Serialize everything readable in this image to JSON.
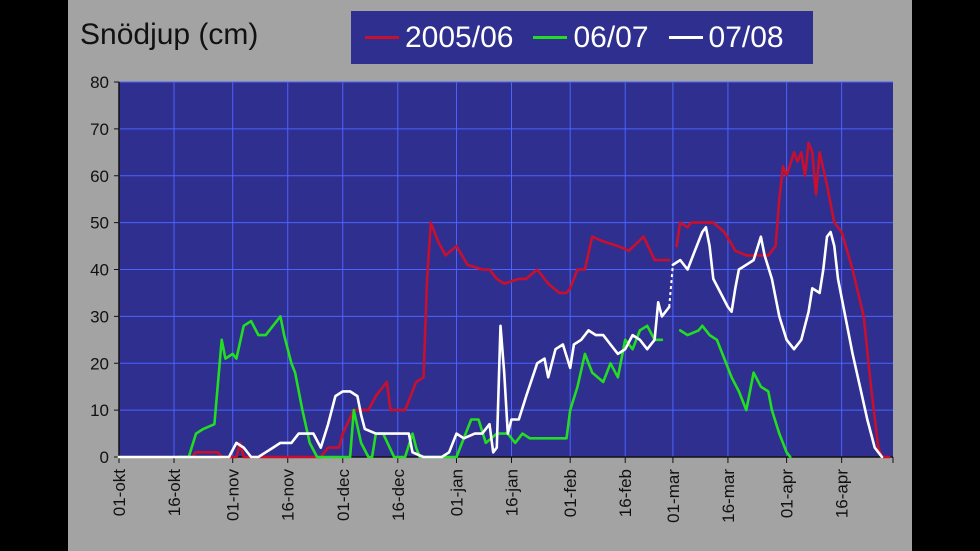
{
  "colors": {
    "page_background": "#000000",
    "panel_background": "#a3a3a3",
    "plot_background": "#2f2f8f",
    "gridline": "#4a64ff",
    "axis_text": "#111111"
  },
  "chart_data": {
    "type": "line",
    "title": "Snödjup (cm)",
    "xlabel": "",
    "ylabel": "",
    "ylim": [
      0,
      80
    ],
    "yticks": [
      "0",
      "10",
      "20",
      "30",
      "40",
      "50",
      "60",
      "70",
      "80"
    ],
    "xlim": [
      "2000-10-01",
      "2001-04-30"
    ],
    "xticks": [
      {
        "date": "2000-10-01",
        "label": "01-okt"
      },
      {
        "date": "2000-10-16",
        "label": "16-okt"
      },
      {
        "date": "2000-11-01",
        "label": "01-nov"
      },
      {
        "date": "2000-11-16",
        "label": "16-nov"
      },
      {
        "date": "2000-12-01",
        "label": "01-dec"
      },
      {
        "date": "2000-12-16",
        "label": "16-dec"
      },
      {
        "date": "2001-01-01",
        "label": "01-jan"
      },
      {
        "date": "2001-01-16",
        "label": "16-jan"
      },
      {
        "date": "2001-02-01",
        "label": "01-feb"
      },
      {
        "date": "2001-02-16",
        "label": "16-feb"
      },
      {
        "date": "2001-03-01",
        "label": "01-mar"
      },
      {
        "date": "2001-03-16",
        "label": "16-mar"
      },
      {
        "date": "2001-04-01",
        "label": "01-apr"
      },
      {
        "date": "2001-04-16",
        "label": "16-apr"
      }
    ],
    "grid": true,
    "legend_position": "top",
    "series": [
      {
        "name": "2005/06",
        "color": "#c8102e",
        "points": [
          [
            "2000-10-21",
            0
          ],
          [
            "2000-10-22",
            1
          ],
          [
            "2000-10-28",
            1
          ],
          [
            "2000-10-29",
            0
          ],
          [
            "2000-11-02",
            0
          ],
          [
            "2000-11-03",
            3
          ],
          [
            "2000-11-04",
            0
          ],
          [
            "2000-11-10",
            0
          ],
          [
            "2000-11-20",
            0
          ],
          [
            "2000-11-25",
            0
          ],
          [
            "2000-11-27",
            2
          ],
          [
            "2000-11-30",
            2
          ],
          [
            "2000-12-01",
            5
          ],
          [
            "2000-12-04",
            10
          ],
          [
            "2000-12-08",
            10
          ],
          [
            "2000-12-10",
            13
          ],
          [
            "2000-12-13",
            16
          ],
          [
            "2000-12-14",
            10
          ],
          [
            "2000-12-18",
            10
          ],
          [
            "2000-12-19",
            12
          ],
          [
            "2000-12-21",
            16
          ],
          [
            "2000-12-23",
            17
          ],
          [
            "2000-12-24",
            38
          ],
          [
            "2000-12-25",
            50
          ],
          [
            "2000-12-27",
            46
          ],
          [
            "2000-12-29",
            43
          ],
          [
            "2001-01-01",
            45
          ],
          [
            "2001-01-04",
            41
          ],
          [
            "2001-01-08",
            40
          ],
          [
            "2001-01-10",
            40
          ],
          [
            "2001-01-12",
            38
          ],
          [
            "2001-01-14",
            37
          ],
          [
            "2001-01-18",
            38
          ],
          [
            "2001-01-20",
            38
          ],
          [
            "2001-01-23",
            40
          ],
          [
            "2001-01-26",
            37
          ],
          [
            "2001-01-29",
            35
          ],
          [
            "2001-01-31",
            35
          ],
          [
            "2001-02-01",
            36
          ],
          [
            "2001-02-03",
            40
          ],
          [
            "2001-02-05",
            40
          ],
          [
            "2001-02-07",
            47
          ],
          [
            "2001-02-10",
            46
          ],
          [
            "2001-02-14",
            45
          ],
          [
            "2001-02-17",
            44
          ],
          [
            "2001-02-21",
            47
          ],
          [
            "2001-02-24",
            42
          ],
          [
            "2001-02-28",
            42
          ]
        ]
      },
      {
        "name": "2005/06",
        "color": "#c8102e",
        "points": [
          [
            "2001-03-02",
            45
          ],
          [
            "2001-03-03",
            50
          ],
          [
            "2001-03-05",
            49
          ],
          [
            "2001-03-06",
            50
          ],
          [
            "2001-03-09",
            50
          ],
          [
            "2001-03-12",
            50
          ],
          [
            "2001-03-15",
            48
          ],
          [
            "2001-03-18",
            44
          ],
          [
            "2001-03-21",
            43
          ],
          [
            "2001-03-24",
            43
          ],
          [
            "2001-03-27",
            43
          ],
          [
            "2001-03-29",
            45
          ],
          [
            "2001-03-30",
            55
          ],
          [
            "2001-03-31",
            62
          ],
          [
            "2001-04-01",
            60
          ],
          [
            "2001-04-03",
            65
          ],
          [
            "2001-04-04",
            63
          ],
          [
            "2001-04-05",
            65
          ],
          [
            "2001-04-06",
            60
          ],
          [
            "2001-04-07",
            67
          ],
          [
            "2001-04-08",
            65
          ],
          [
            "2001-04-09",
            56
          ],
          [
            "2001-04-10",
            65
          ],
          [
            "2001-04-12",
            58
          ],
          [
            "2001-04-14",
            50
          ],
          [
            "2001-04-16",
            48
          ],
          [
            "2001-04-19",
            40
          ],
          [
            "2001-04-22",
            30
          ],
          [
            "2001-04-24",
            15
          ],
          [
            "2001-04-26",
            2
          ],
          [
            "2001-04-27",
            0
          ],
          [
            "2001-04-29",
            0
          ]
        ]
      },
      {
        "name": "06/07",
        "color": "#22dd22",
        "points": [
          [
            "2000-10-17",
            0
          ],
          [
            "2000-10-20",
            0
          ],
          [
            "2000-10-22",
            5
          ],
          [
            "2000-10-24",
            6
          ],
          [
            "2000-10-27",
            7
          ],
          [
            "2000-10-29",
            25
          ],
          [
            "2000-10-30",
            21
          ],
          [
            "2000-11-01",
            22
          ],
          [
            "2000-11-02",
            21
          ],
          [
            "2000-11-04",
            28
          ],
          [
            "2000-11-06",
            29
          ],
          [
            "2000-11-08",
            26
          ],
          [
            "2000-11-10",
            26
          ],
          [
            "2000-11-14",
            30
          ],
          [
            "2000-11-15",
            26
          ],
          [
            "2000-11-17",
            20
          ],
          [
            "2000-11-18",
            18
          ],
          [
            "2000-11-20",
            10
          ],
          [
            "2000-11-22",
            3
          ],
          [
            "2000-11-24",
            0
          ],
          [
            "2000-12-03",
            0
          ],
          [
            "2000-12-04",
            10
          ],
          [
            "2000-12-06",
            3
          ],
          [
            "2000-12-08",
            0
          ],
          [
            "2000-12-09",
            0
          ],
          [
            "2000-12-10",
            5
          ],
          [
            "2000-12-12",
            5
          ],
          [
            "2000-12-15",
            0
          ],
          [
            "2000-12-18",
            0
          ],
          [
            "2000-12-20",
            5
          ],
          [
            "2000-12-21",
            2
          ],
          [
            "2000-12-22",
            0
          ],
          [
            "2000-12-28",
            0
          ],
          [
            "2001-01-01",
            0
          ],
          [
            "2001-01-03",
            4
          ],
          [
            "2001-01-05",
            8
          ],
          [
            "2001-01-07",
            8
          ],
          [
            "2001-01-09",
            3
          ],
          [
            "2001-01-12",
            5
          ],
          [
            "2001-01-15",
            5
          ],
          [
            "2001-01-17",
            3
          ],
          [
            "2001-01-19",
            5
          ],
          [
            "2001-01-21",
            4
          ],
          [
            "2001-01-24",
            4
          ],
          [
            "2001-01-28",
            4
          ],
          [
            "2001-01-31",
            4
          ],
          [
            "2001-02-01",
            10
          ],
          [
            "2001-02-03",
            15
          ],
          [
            "2001-02-05",
            22
          ],
          [
            "2001-02-07",
            18
          ],
          [
            "2001-02-10",
            16
          ],
          [
            "2001-02-12",
            20
          ],
          [
            "2001-02-14",
            17
          ],
          [
            "2001-02-16",
            25
          ],
          [
            "2001-02-18",
            23
          ],
          [
            "2001-02-20",
            27
          ],
          [
            "2001-02-22",
            28
          ],
          [
            "2001-02-24",
            25
          ],
          [
            "2001-02-26",
            25
          ]
        ]
      },
      {
        "name": "06/07",
        "color": "#22dd22",
        "points": [
          [
            "2001-03-03",
            27
          ],
          [
            "2001-03-05",
            26
          ],
          [
            "2001-03-08",
            27
          ],
          [
            "2001-03-09",
            28
          ],
          [
            "2001-03-11",
            26
          ],
          [
            "2001-03-13",
            25
          ],
          [
            "2001-03-15",
            21
          ],
          [
            "2001-03-17",
            17
          ],
          [
            "2001-03-19",
            14
          ],
          [
            "2001-03-21",
            10
          ],
          [
            "2001-03-23",
            18
          ],
          [
            "2001-03-25",
            15
          ],
          [
            "2001-03-27",
            14
          ],
          [
            "2001-03-28",
            10
          ],
          [
            "2001-03-30",
            5
          ],
          [
            "2001-04-01",
            1
          ],
          [
            "2001-04-02",
            0
          ]
        ]
      },
      {
        "name": "07/08",
        "color": "#ffffff",
        "points": [
          [
            "2000-10-01",
            0
          ],
          [
            "2000-10-31",
            0
          ],
          [
            "2000-11-02",
            3
          ],
          [
            "2000-11-04",
            2
          ],
          [
            "2000-11-06",
            0
          ],
          [
            "2000-11-08",
            0
          ],
          [
            "2000-11-10",
            1
          ],
          [
            "2000-11-12",
            2
          ],
          [
            "2000-11-14",
            3
          ],
          [
            "2000-11-17",
            3
          ],
          [
            "2000-11-19",
            5
          ],
          [
            "2000-11-21",
            5
          ],
          [
            "2000-11-23",
            5
          ],
          [
            "2000-11-25",
            2
          ],
          [
            "2000-11-27",
            7
          ],
          [
            "2000-11-29",
            13
          ],
          [
            "2000-12-01",
            14
          ],
          [
            "2000-12-03",
            14
          ],
          [
            "2000-12-05",
            13
          ],
          [
            "2000-12-06",
            9
          ],
          [
            "2000-12-07",
            6
          ],
          [
            "2000-12-10",
            5
          ],
          [
            "2000-12-14",
            5
          ],
          [
            "2000-12-17",
            5
          ],
          [
            "2000-12-19",
            5
          ],
          [
            "2000-12-20",
            1
          ],
          [
            "2000-12-23",
            0
          ],
          [
            "2000-12-28",
            0
          ],
          [
            "2000-12-30",
            1
          ],
          [
            "2001-01-01",
            5
          ],
          [
            "2001-01-03",
            4
          ],
          [
            "2001-01-06",
            5
          ],
          [
            "2001-01-08",
            5
          ],
          [
            "2001-01-10",
            7
          ],
          [
            "2001-01-11",
            1
          ],
          [
            "2001-01-12",
            2
          ],
          [
            "2001-01-13",
            28
          ],
          [
            "2001-01-14",
            18
          ],
          [
            "2001-01-15",
            5
          ],
          [
            "2001-01-16",
            8
          ],
          [
            "2001-01-18",
            8
          ],
          [
            "2001-01-20",
            13
          ],
          [
            "2001-01-23",
            20
          ],
          [
            "2001-01-25",
            21
          ],
          [
            "2001-01-26",
            17
          ],
          [
            "2001-01-28",
            23
          ],
          [
            "2001-01-30",
            24
          ],
          [
            "2001-02-01",
            19
          ],
          [
            "2001-02-02",
            24
          ],
          [
            "2001-02-04",
            25
          ],
          [
            "2001-02-06",
            27
          ],
          [
            "2001-02-08",
            26
          ],
          [
            "2001-02-10",
            26
          ],
          [
            "2001-02-12",
            24
          ],
          [
            "2001-02-14",
            22
          ],
          [
            "2001-02-16",
            23
          ],
          [
            "2001-02-18",
            26
          ],
          [
            "2001-02-20",
            25
          ],
          [
            "2001-02-22",
            23
          ],
          [
            "2001-02-24",
            25
          ],
          [
            "2001-02-25",
            33
          ],
          [
            "2001-02-26",
            30
          ],
          [
            "2001-02-28",
            32
          ]
        ]
      },
      {
        "name": "07/08",
        "color": "#ffffff",
        "points": [
          [
            "2001-03-01",
            41
          ],
          [
            "2001-03-03",
            42
          ],
          [
            "2001-03-05",
            40
          ],
          [
            "2001-03-07",
            44
          ],
          [
            "2001-03-09",
            48
          ],
          [
            "2001-03-10",
            49
          ],
          [
            "2001-03-11",
            45
          ],
          [
            "2001-03-12",
            38
          ],
          [
            "2001-03-14",
            35
          ],
          [
            "2001-03-16",
            32
          ],
          [
            "2001-03-17",
            31
          ],
          [
            "2001-03-18",
            36
          ],
          [
            "2001-03-19",
            40
          ],
          [
            "2001-03-21",
            41
          ],
          [
            "2001-03-23",
            42
          ],
          [
            "2001-03-25",
            47
          ],
          [
            "2001-03-26",
            43
          ],
          [
            "2001-03-28",
            38
          ],
          [
            "2001-03-30",
            30
          ],
          [
            "2001-04-01",
            25
          ],
          [
            "2001-04-03",
            23
          ],
          [
            "2001-04-05",
            25
          ],
          [
            "2001-04-07",
            31
          ],
          [
            "2001-04-08",
            36
          ],
          [
            "2001-04-10",
            35
          ],
          [
            "2001-04-11",
            40
          ],
          [
            "2001-04-12",
            47
          ],
          [
            "2001-04-13",
            48
          ],
          [
            "2001-04-14",
            45
          ],
          [
            "2001-04-15",
            38
          ],
          [
            "2001-04-17",
            30
          ],
          [
            "2001-04-19",
            22
          ],
          [
            "2001-04-21",
            15
          ],
          [
            "2001-04-23",
            8
          ],
          [
            "2001-04-25",
            2
          ],
          [
            "2001-04-27",
            0
          ]
        ]
      }
    ],
    "bridges": [
      {
        "color": "#ffffff",
        "dashed": true,
        "points": [
          [
            "2001-02-28",
            32
          ],
          [
            "2001-03-01",
            41
          ]
        ]
      }
    ]
  },
  "legend": {
    "items": [
      {
        "label": "2005/06",
        "color": "#c8102e"
      },
      {
        "label": "06/07",
        "color": "#22dd22"
      },
      {
        "label": "07/08",
        "color": "#ffffff"
      }
    ]
  }
}
